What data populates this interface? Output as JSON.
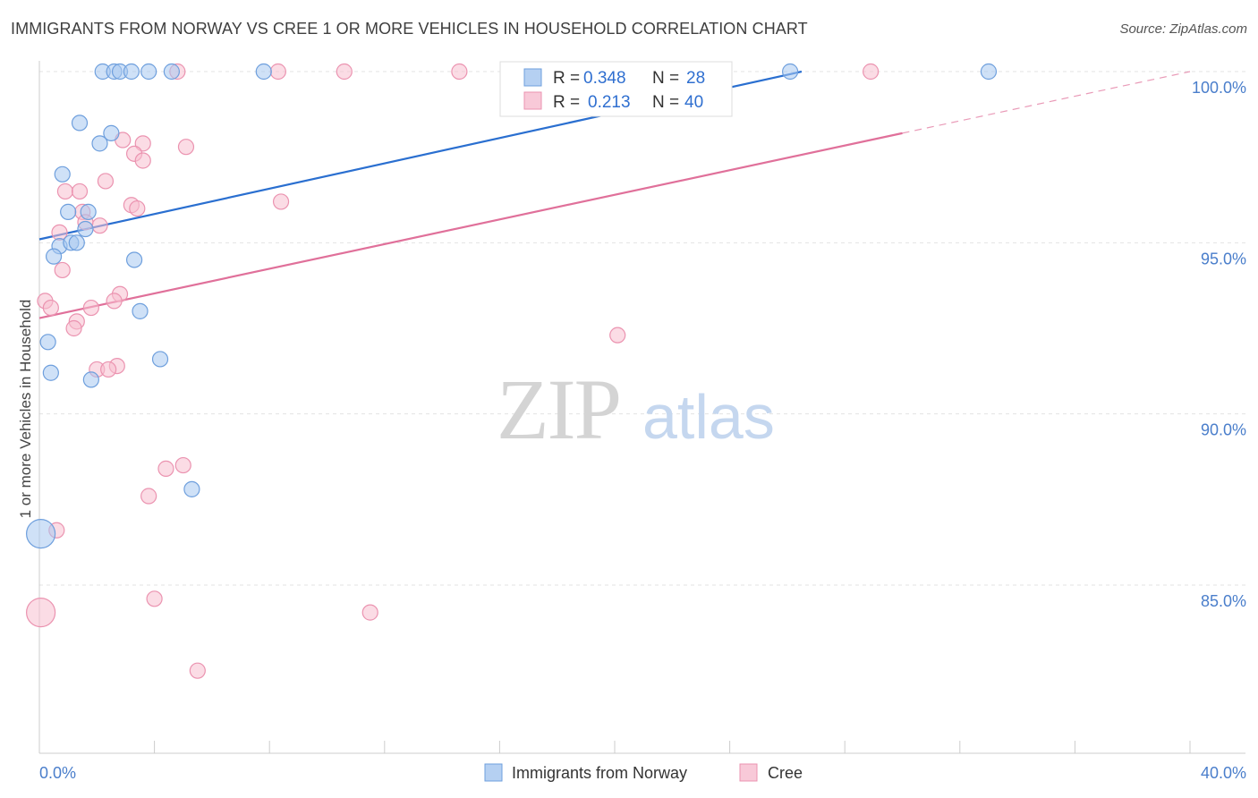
{
  "title": "IMMIGRANTS FROM NORWAY VS CREE 1 OR MORE VEHICLES IN HOUSEHOLD CORRELATION CHART",
  "source": "Source: ZipAtlas.com",
  "watermark": {
    "zip": "ZIP",
    "atlas": "atlas"
  },
  "legend": {
    "r_label": "R =",
    "n_label": "N =",
    "series1": {
      "r": "0.348",
      "n": "28"
    },
    "series2": {
      "r": "0.213",
      "n": "40"
    }
  },
  "chart_data": {
    "type": "scatter",
    "title": "IMMIGRANTS FROM NORWAY VS CREE 1 OR MORE VEHICLES IN HOUSEHOLD CORRELATION CHART",
    "xlabel": "",
    "ylabel": "1 or more Vehicles in Household",
    "xlim": [
      0,
      40
    ],
    "ylim": [
      80.3,
      100.4
    ],
    "x_tick_labels": [
      "0.0%",
      "40.0%"
    ],
    "y_ticks": [
      100,
      95,
      90,
      85
    ],
    "y_tick_labels": [
      "100.0%",
      "95.0%",
      "90.0%",
      "85.0%"
    ],
    "grid": true,
    "legend_position": "top-center",
    "series": [
      {
        "name": "Immigrants from Norway",
        "color": "#a8c8f0",
        "stroke": "#6e9fdd",
        "line_color": "#2a6fd0",
        "trend": {
          "x": [
            0,
            26.5
          ],
          "y": [
            95.1,
            100.0
          ]
        },
        "points": [
          {
            "x": 2.2,
            "y": 100,
            "s": 1
          },
          {
            "x": 2.6,
            "y": 100,
            "s": 1
          },
          {
            "x": 2.8,
            "y": 100,
            "s": 1
          },
          {
            "x": 3.2,
            "y": 100,
            "s": 1
          },
          {
            "x": 3.8,
            "y": 100,
            "s": 1
          },
          {
            "x": 4.6,
            "y": 100,
            "s": 1
          },
          {
            "x": 7.8,
            "y": 100,
            "s": 1
          },
          {
            "x": 26.1,
            "y": 100,
            "s": 1
          },
          {
            "x": 33.0,
            "y": 100,
            "s": 1
          },
          {
            "x": 1.4,
            "y": 98.5,
            "s": 1
          },
          {
            "x": 2.5,
            "y": 98.2,
            "s": 1
          },
          {
            "x": 2.1,
            "y": 97.9,
            "s": 1
          },
          {
            "x": 0.8,
            "y": 97.0,
            "s": 1
          },
          {
            "x": 1.0,
            "y": 95.9,
            "s": 1
          },
          {
            "x": 1.7,
            "y": 95.9,
            "s": 1
          },
          {
            "x": 1.6,
            "y": 95.4,
            "s": 1
          },
          {
            "x": 0.7,
            "y": 94.9,
            "s": 1
          },
          {
            "x": 1.1,
            "y": 95.0,
            "s": 1
          },
          {
            "x": 1.3,
            "y": 95.0,
            "s": 1
          },
          {
            "x": 0.5,
            "y": 94.6,
            "s": 1
          },
          {
            "x": 3.3,
            "y": 94.5,
            "s": 1
          },
          {
            "x": 3.5,
            "y": 93.0,
            "s": 1
          },
          {
            "x": 0.3,
            "y": 92.1,
            "s": 1
          },
          {
            "x": 4.2,
            "y": 91.6,
            "s": 1
          },
          {
            "x": 0.4,
            "y": 91.2,
            "s": 1
          },
          {
            "x": 1.8,
            "y": 91.0,
            "s": 1
          },
          {
            "x": 5.3,
            "y": 87.8,
            "s": 1
          },
          {
            "x": 0.05,
            "y": 86.5,
            "s": 2
          }
        ]
      },
      {
        "name": "Cree",
        "color": "#f7bfd0",
        "stroke": "#eb93b0",
        "line_color": "#e0709a",
        "trend": {
          "x": [
            0,
            30.0
          ],
          "y": [
            92.8,
            98.2
          ]
        },
        "trend_dashed": {
          "x": [
            30.0,
            40.0
          ],
          "y": [
            98.2,
            100.0
          ]
        },
        "points": [
          {
            "x": 4.8,
            "y": 100,
            "s": 1
          },
          {
            "x": 8.3,
            "y": 100,
            "s": 1
          },
          {
            "x": 10.6,
            "y": 100,
            "s": 1
          },
          {
            "x": 14.6,
            "y": 100,
            "s": 1
          },
          {
            "x": 28.9,
            "y": 100,
            "s": 1
          },
          {
            "x": 2.9,
            "y": 98.0,
            "s": 1
          },
          {
            "x": 3.6,
            "y": 97.9,
            "s": 1
          },
          {
            "x": 5.1,
            "y": 97.8,
            "s": 1
          },
          {
            "x": 3.3,
            "y": 97.6,
            "s": 1
          },
          {
            "x": 3.6,
            "y": 97.4,
            "s": 1
          },
          {
            "x": 2.3,
            "y": 96.8,
            "s": 1
          },
          {
            "x": 0.9,
            "y": 96.5,
            "s": 1
          },
          {
            "x": 1.4,
            "y": 96.5,
            "s": 1
          },
          {
            "x": 3.2,
            "y": 96.1,
            "s": 1
          },
          {
            "x": 8.4,
            "y": 96.2,
            "s": 1
          },
          {
            "x": 3.4,
            "y": 96.0,
            "s": 1
          },
          {
            "x": 1.5,
            "y": 95.9,
            "s": 1
          },
          {
            "x": 2.1,
            "y": 95.5,
            "s": 1
          },
          {
            "x": 1.6,
            "y": 95.6,
            "s": 1
          },
          {
            "x": 0.7,
            "y": 95.3,
            "s": 1
          },
          {
            "x": 0.8,
            "y": 94.2,
            "s": 1
          },
          {
            "x": 2.8,
            "y": 93.5,
            "s": 1
          },
          {
            "x": 0.2,
            "y": 93.3,
            "s": 1
          },
          {
            "x": 0.4,
            "y": 93.1,
            "s": 1
          },
          {
            "x": 2.6,
            "y": 93.3,
            "s": 1
          },
          {
            "x": 1.8,
            "y": 93.1,
            "s": 1
          },
          {
            "x": 1.3,
            "y": 92.7,
            "s": 1
          },
          {
            "x": 1.2,
            "y": 92.5,
            "s": 1
          },
          {
            "x": 20.1,
            "y": 92.3,
            "s": 1
          },
          {
            "x": 2.7,
            "y": 91.4,
            "s": 1
          },
          {
            "x": 2.0,
            "y": 91.3,
            "s": 1
          },
          {
            "x": 2.4,
            "y": 91.3,
            "s": 1
          },
          {
            "x": 5.0,
            "y": 88.5,
            "s": 1
          },
          {
            "x": 4.4,
            "y": 88.4,
            "s": 1
          },
          {
            "x": 3.8,
            "y": 87.6,
            "s": 1
          },
          {
            "x": 0.6,
            "y": 86.6,
            "s": 1
          },
          {
            "x": 4.0,
            "y": 84.6,
            "s": 1
          },
          {
            "x": 11.5,
            "y": 84.2,
            "s": 1
          },
          {
            "x": 0.05,
            "y": 84.2,
            "s": 2
          },
          {
            "x": 5.5,
            "y": 82.5,
            "s": 1
          }
        ]
      }
    ]
  }
}
